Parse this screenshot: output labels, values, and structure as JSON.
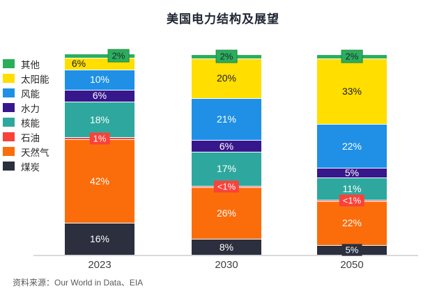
{
  "chart_data": {
    "type": "bar",
    "stacked": true,
    "title": "美国电力结构及展望",
    "categories": [
      "2023",
      "2030",
      "2050"
    ],
    "unit": "%",
    "ylim": [
      0,
      101
    ],
    "grid": false,
    "legend_position": "left",
    "legend_order_note": "top-to-bottom: reverse of stacking order",
    "source_note": "资料来源：Our World in Data、EIA",
    "axis_color": "#D9D9D9",
    "series": [
      {
        "name": "煤炭",
        "color": "#2B2F3E",
        "label_color": "#FFFFFF",
        "values": [
          16,
          8,
          5
        ],
        "labels": [
          "16%",
          "8%",
          "5%"
        ],
        "badge": [
          false,
          false,
          true
        ],
        "label_dx": [
          0,
          0,
          0
        ]
      },
      {
        "name": "天然气",
        "color": "#FB6D0A",
        "label_color": "#FFFFFF",
        "values": [
          42,
          26,
          22
        ],
        "labels": [
          "42%",
          "26%",
          "22%"
        ],
        "badge": [
          false,
          false,
          false
        ],
        "label_dx": [
          0,
          0,
          0
        ]
      },
      {
        "name": "石油",
        "color": "#F9423A",
        "label_color": "#FFFFFF",
        "values": [
          1,
          0.7,
          0.7
        ],
        "labels": [
          "1%",
          "<1%",
          "<1%"
        ],
        "badge": [
          true,
          true,
          true
        ],
        "label_dx": [
          0,
          0,
          0
        ]
      },
      {
        "name": "核能",
        "color": "#2EA89E",
        "label_color": "#FFFFFF",
        "values": [
          18,
          17,
          11
        ],
        "labels": [
          "18%",
          "17%",
          "11%"
        ],
        "badge": [
          false,
          false,
          false
        ],
        "label_dx": [
          0,
          0,
          0
        ]
      },
      {
        "name": "水力",
        "color": "#37188C",
        "label_color": "#FFFFFF",
        "values": [
          6,
          6,
          5
        ],
        "labels": [
          "6%",
          "6%",
          "5%"
        ],
        "badge": [
          false,
          false,
          false
        ],
        "label_dx": [
          0,
          0,
          0
        ]
      },
      {
        "name": "风能",
        "color": "#1F90E6",
        "label_color": "#FFFFFF",
        "values": [
          10,
          21,
          22
        ],
        "labels": [
          "10%",
          "21%",
          "22%"
        ],
        "badge": [
          false,
          false,
          false
        ],
        "label_dx": [
          0,
          0,
          0
        ]
      },
      {
        "name": "太阳能",
        "color": "#FFDE00",
        "label_color": "#1A1A1A",
        "values": [
          6,
          20,
          33
        ],
        "labels": [
          "6%",
          "20%",
          "33%"
        ],
        "badge": [
          false,
          false,
          false
        ],
        "label_dx": [
          -30,
          0,
          0
        ]
      },
      {
        "name": "其他",
        "color": "#2BAE5C",
        "label_color": "#1F2633",
        "values": [
          2,
          2,
          2
        ],
        "labels": [
          "2%",
          "2%",
          "2%"
        ],
        "badge": [
          true,
          true,
          true
        ],
        "label_dx": [
          27,
          0,
          0
        ]
      }
    ]
  }
}
